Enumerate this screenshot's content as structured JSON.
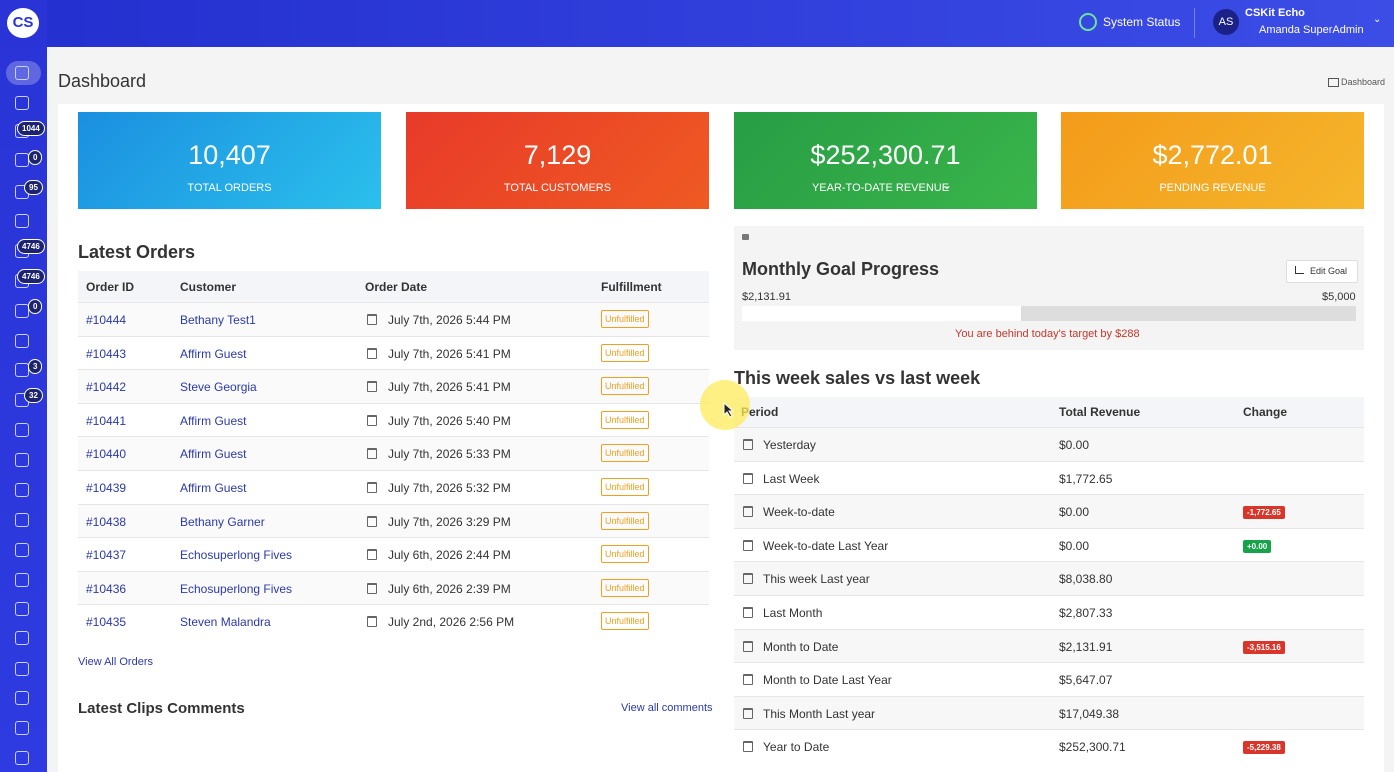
{
  "sidebar": {
    "logo": "CS",
    "badges": [
      "1044",
      "0",
      "95",
      "4746",
      "4746",
      "0",
      "3",
      "32"
    ]
  },
  "topbar": {
    "system_status": "System Status",
    "avatar": "AS",
    "account": "CSKit Echo",
    "user": "Amanda SuperAdmin"
  },
  "page": {
    "title": "Dashboard",
    "breadcrumb": "Dashboard"
  },
  "stats": [
    {
      "value": "10,407",
      "label": "TOTAL ORDERS"
    },
    {
      "value": "7,129",
      "label": "TOTAL CUSTOMERS"
    },
    {
      "value": "$252,300.71",
      "label": "YEAR-TO-DATE REVENUE"
    },
    {
      "value": "$2,772.01",
      "label": "PENDING REVENUE"
    }
  ],
  "orders": {
    "title": "Latest Orders",
    "columns": [
      "Order ID",
      "Customer",
      "Order Date",
      "Fulfillment"
    ],
    "rows": [
      [
        "#10444",
        "Bethany Test1",
        "July 7th, 2026 5:44 PM",
        "Unfulfilled"
      ],
      [
        "#10443",
        "Affirm Guest",
        "July 7th, 2026 5:41 PM",
        "Unfulfilled"
      ],
      [
        "#10442",
        "Steve Georgia",
        "July 7th, 2026 5:41 PM",
        "Unfulfilled"
      ],
      [
        "#10441",
        "Affirm Guest",
        "July 7th, 2026 5:40 PM",
        "Unfulfilled"
      ],
      [
        "#10440",
        "Affirm Guest",
        "July 7th, 2026 5:33 PM",
        "Unfulfilled"
      ],
      [
        "#10439",
        "Affirm Guest",
        "July 7th, 2026 5:32 PM",
        "Unfulfilled"
      ],
      [
        "#10438",
        "Bethany Garner",
        "July 7th, 2026 3:29 PM",
        "Unfulfilled"
      ],
      [
        "#10437",
        "Echosuperlong Fives",
        "July 6th, 2026 2:44 PM",
        "Unfulfilled"
      ],
      [
        "#10436",
        "Echosuperlong Fives",
        "July 6th, 2026 2:39 PM",
        "Unfulfilled"
      ],
      [
        "#10435",
        "Steven Malandra",
        "July 2nd, 2026 2:56 PM",
        "Unfulfilled"
      ]
    ],
    "link": "View All Orders"
  },
  "comments": {
    "title": "Latest Clips Comments",
    "link": "View all comments"
  },
  "goal": {
    "title": "Monthly Goal Progress",
    "button": "Edit Goal",
    "current": "$2,131.91",
    "target": "$5,000",
    "message": "You are behind today's target by $288"
  },
  "sales": {
    "title": "This week sales vs last week",
    "columns": [
      "Period",
      "Total Revenue",
      "Change"
    ],
    "rows": [
      {
        "period": "Yesterday",
        "revenue": "$0.00"
      },
      {
        "period": "Last Week",
        "revenue": "$1,772.65"
      },
      {
        "period": "Week-to-date",
        "revenue": "$0.00",
        "change": "-1,772.65"
      },
      {
        "period": "Week-to-date Last Year",
        "revenue": "$0.00",
        "change": "+0.00"
      },
      {
        "period": "This week Last year",
        "revenue": "$8,038.80"
      },
      {
        "period": "Last Month",
        "revenue": "$2,807.33"
      },
      {
        "period": "Month to Date",
        "revenue": "$2,131.91",
        "change": "-3,515.16"
      },
      {
        "period": "Month to Date Last Year",
        "revenue": "$5,647.07"
      },
      {
        "period": "This Month Last year",
        "revenue": "$17,049.38"
      },
      {
        "period": "Year to Date",
        "revenue": "$252,300.71",
        "change": "-5,229.38"
      }
    ]
  }
}
